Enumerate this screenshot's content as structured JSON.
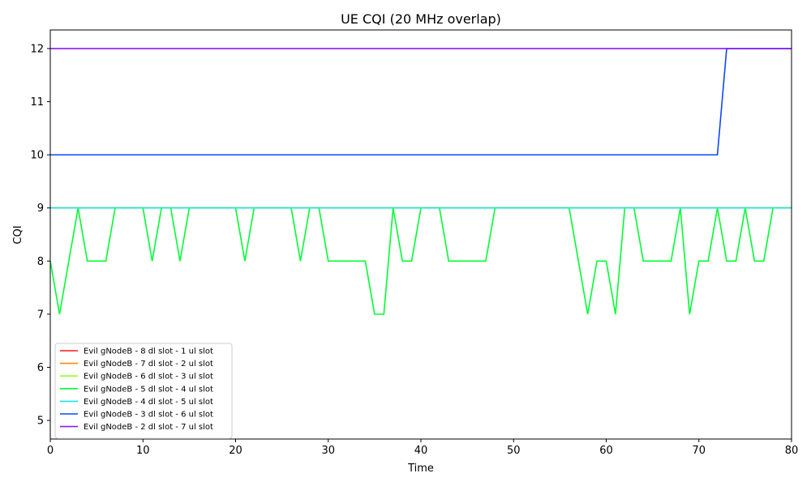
{
  "chart_data": {
    "type": "line",
    "title": "UE CQI (20 MHz overlap)",
    "xlabel": "Time",
    "ylabel": "CQI",
    "xlim": [
      0,
      80
    ],
    "ylim": [
      4.65,
      12.35
    ],
    "xticks": [
      0,
      10,
      20,
      30,
      40,
      50,
      60,
      70,
      80
    ],
    "yticks": [
      5,
      6,
      7,
      8,
      9,
      10,
      11,
      12
    ],
    "grid": false,
    "legend_position": "lower-left",
    "series": [
      {
        "name": "Evil gNodeB - 8 dl slot - 1 ul slot",
        "color": "#ff1a1a",
        "x": [
          0,
          80
        ],
        "y": [
          9,
          9
        ]
      },
      {
        "name": "Evil gNodeB - 7 dl slot - 2 ul slot",
        "color": "#ff8c00",
        "x": [
          0,
          80
        ],
        "y": [
          9,
          9
        ]
      },
      {
        "name": "Evil gNodeB - 6 dl slot - 3 ul slot",
        "color": "#9aff1a",
        "x": [
          0,
          80
        ],
        "y": [
          9,
          9
        ]
      },
      {
        "name": "Evil gNodeB - 5 dl slot - 4 ul slot",
        "color": "#00ff33",
        "x": [
          0,
          1,
          3,
          4,
          6,
          7,
          10,
          11,
          12,
          13,
          14,
          15,
          20,
          21,
          22,
          26,
          27,
          28,
          29,
          30,
          34,
          35,
          36,
          37,
          38,
          39,
          40,
          42,
          43,
          47,
          48,
          56,
          58,
          59,
          60,
          61,
          62,
          63,
          64,
          67,
          68,
          69,
          70,
          71,
          72,
          73,
          74,
          75,
          76,
          77,
          78,
          80
        ],
        "y": [
          8,
          7,
          9,
          8,
          8,
          9,
          9,
          8,
          9,
          9,
          8,
          9,
          9,
          8,
          9,
          9,
          8,
          9,
          9,
          8,
          8,
          7,
          7,
          9,
          8,
          8,
          9,
          9,
          8,
          8,
          9,
          9,
          7,
          8,
          8,
          7,
          9,
          9,
          8,
          8,
          9,
          7,
          8,
          8,
          9,
          8,
          8,
          9,
          8,
          8,
          9,
          9
        ]
      },
      {
        "name": "Evil gNodeB - 4 dl slot - 5 ul slot",
        "color": "#1ae6e6",
        "x": [
          0,
          80
        ],
        "y": [
          9,
          9
        ]
      },
      {
        "name": "Evil gNodeB - 3 dl slot - 6 ul slot",
        "color": "#0d47ff",
        "x": [
          0,
          72,
          73,
          80
        ],
        "y": [
          10,
          10,
          12,
          12
        ]
      },
      {
        "name": "Evil gNodeB - 2 dl slot - 7 ul slot",
        "color": "#8c1aff",
        "x": [
          0,
          80
        ],
        "y": [
          12,
          12
        ]
      }
    ]
  }
}
